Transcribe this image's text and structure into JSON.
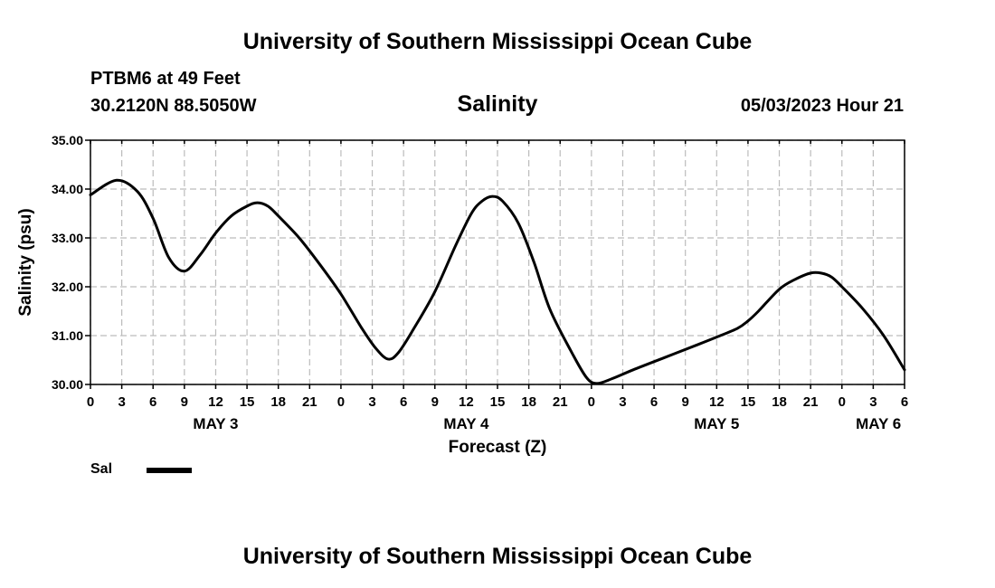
{
  "header": {
    "title": "University of Southern Mississippi Ocean Cube",
    "station": "PTBM6 at 49 Feet",
    "coords": "30.2120N  88.5050W",
    "timestamp": "05/03/2023 Hour 21"
  },
  "footer": {
    "title": "University of Southern Mississippi Ocean Cube"
  },
  "legend": {
    "label": "Sal",
    "color": "#000000"
  },
  "chart_data": {
    "type": "line",
    "title": "Salinity",
    "xlabel": "Forecast (Z)",
    "ylabel": "Salinity (psu)",
    "ylim": [
      30.0,
      35.0
    ],
    "xlim": [
      0,
      78
    ],
    "y_ticks": [
      "30.00",
      "31.00",
      "32.00",
      "33.00",
      "34.00",
      "35.00"
    ],
    "x_ticks": [
      {
        "h": 0,
        "label": "0"
      },
      {
        "h": 3,
        "label": "3"
      },
      {
        "h": 6,
        "label": "6"
      },
      {
        "h": 9,
        "label": "9"
      },
      {
        "h": 12,
        "label": "12"
      },
      {
        "h": 15,
        "label": "15"
      },
      {
        "h": 18,
        "label": "18"
      },
      {
        "h": 21,
        "label": "21"
      },
      {
        "h": 24,
        "label": "0"
      },
      {
        "h": 27,
        "label": "3"
      },
      {
        "h": 30,
        "label": "6"
      },
      {
        "h": 33,
        "label": "9"
      },
      {
        "h": 36,
        "label": "12"
      },
      {
        "h": 39,
        "label": "15"
      },
      {
        "h": 42,
        "label": "18"
      },
      {
        "h": 45,
        "label": "21"
      },
      {
        "h": 48,
        "label": "0"
      },
      {
        "h": 51,
        "label": "3"
      },
      {
        "h": 54,
        "label": "6"
      },
      {
        "h": 57,
        "label": "9"
      },
      {
        "h": 60,
        "label": "12"
      },
      {
        "h": 63,
        "label": "15"
      },
      {
        "h": 66,
        "label": "18"
      },
      {
        "h": 69,
        "label": "21"
      },
      {
        "h": 72,
        "label": "0"
      },
      {
        "h": 75,
        "label": "3"
      },
      {
        "h": 78,
        "label": "6"
      }
    ],
    "date_labels": [
      {
        "h": 12,
        "label": "MAY 3"
      },
      {
        "h": 36,
        "label": "MAY 4"
      },
      {
        "h": 60,
        "label": "MAY 5"
      },
      {
        "h": 75.5,
        "label": "MAY 6"
      }
    ],
    "grid": true,
    "series": [
      {
        "name": "Sal",
        "color": "#000000",
        "points": [
          [
            0,
            33.88
          ],
          [
            2.5,
            34.18
          ],
          [
            4.5,
            33.95
          ],
          [
            6,
            33.4
          ],
          [
            7.5,
            32.6
          ],
          [
            9,
            32.32
          ],
          [
            10.5,
            32.65
          ],
          [
            12,
            33.1
          ],
          [
            13.5,
            33.45
          ],
          [
            15,
            33.65
          ],
          [
            16,
            33.72
          ],
          [
            17,
            33.65
          ],
          [
            18,
            33.45
          ],
          [
            20,
            33.0
          ],
          [
            22,
            32.45
          ],
          [
            24,
            31.85
          ],
          [
            26,
            31.15
          ],
          [
            27.3,
            30.75
          ],
          [
            28.5,
            30.52
          ],
          [
            29.5,
            30.65
          ],
          [
            31,
            31.15
          ],
          [
            33,
            31.9
          ],
          [
            35,
            32.85
          ],
          [
            36.5,
            33.5
          ],
          [
            37.5,
            33.75
          ],
          [
            38.5,
            33.85
          ],
          [
            39.5,
            33.75
          ],
          [
            41,
            33.3
          ],
          [
            42.5,
            32.5
          ],
          [
            44,
            31.55
          ],
          [
            46,
            30.7
          ],
          [
            47.5,
            30.15
          ],
          [
            48.5,
            30.02
          ],
          [
            50,
            30.12
          ],
          [
            52,
            30.3
          ],
          [
            55,
            30.55
          ],
          [
            58,
            30.8
          ],
          [
            60,
            30.97
          ],
          [
            62,
            31.15
          ],
          [
            63,
            31.3
          ],
          [
            64,
            31.5
          ],
          [
            66,
            31.95
          ],
          [
            67.5,
            32.15
          ],
          [
            69,
            32.28
          ],
          [
            70,
            32.28
          ],
          [
            71,
            32.2
          ],
          [
            72,
            32.0
          ],
          [
            74,
            31.55
          ],
          [
            76,
            31.0
          ],
          [
            78,
            30.3
          ]
        ]
      }
    ]
  }
}
